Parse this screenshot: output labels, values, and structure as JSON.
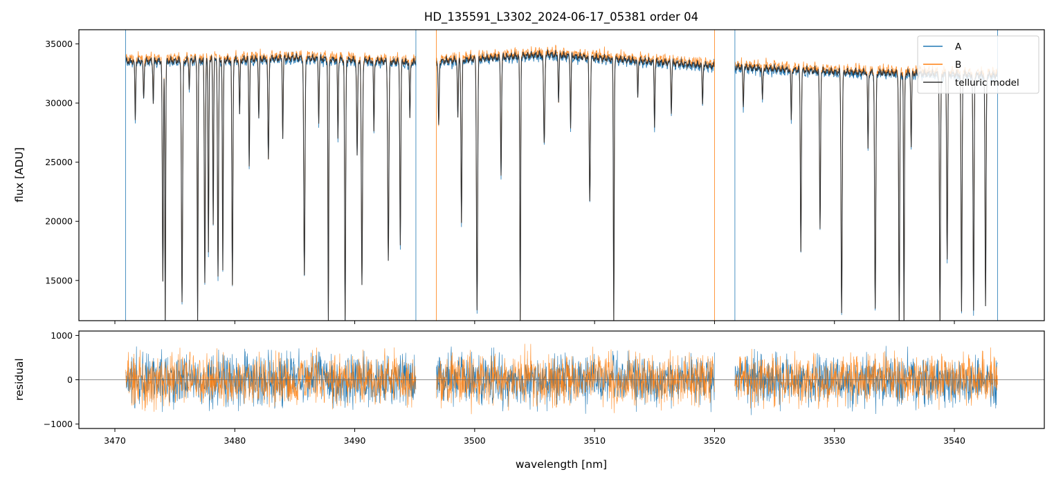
{
  "chart_data": {
    "type": "line",
    "title": "HD_135591_L3302_2024-06-17_05381  order 04",
    "xlabel": "wavelength [nm]",
    "xlim": [
      3467,
      3547.5
    ],
    "x_ticks": [
      3470,
      3480,
      3490,
      3500,
      3510,
      3520,
      3530,
      3540
    ],
    "x_tick_labels": [
      "3470",
      "3480",
      "3490",
      "3500",
      "3510",
      "3520",
      "3530",
      "3540"
    ],
    "colors": {
      "A": "#1f77b4",
      "B": "#ff7f0e",
      "model": "#333333",
      "zero_line": "#666666"
    },
    "legend": {
      "position": "top-right",
      "entries": [
        "A",
        "B",
        "telluric model"
      ]
    },
    "segments": [
      [
        3470.9,
        3495.1
      ],
      [
        3496.8,
        3520.0
      ],
      [
        3521.7,
        3543.6
      ]
    ],
    "panels": [
      {
        "name": "flux",
        "ylabel": "flux [ADU]",
        "ylim": [
          11600,
          36200
        ],
        "y_ticks": [
          15000,
          20000,
          25000,
          30000,
          35000
        ],
        "y_tick_labels": [
          "15000",
          "20000",
          "25000",
          "30000",
          "35000"
        ],
        "continuum_points": [
          [
            3471,
            34000
          ],
          [
            3480,
            34100
          ],
          [
            3485,
            34300
          ],
          [
            3495,
            33900
          ],
          [
            3497,
            34000
          ],
          [
            3506,
            34600
          ],
          [
            3510,
            34300
          ],
          [
            3520,
            33600
          ],
          [
            3522,
            33500
          ],
          [
            3530,
            33100
          ],
          [
            3543.6,
            32800
          ]
        ],
        "absorption_lines": [
          [
            3471.7,
            29000,
            0.05
          ],
          [
            3472.4,
            31000,
            0.06
          ],
          [
            3473.2,
            30500,
            0.05
          ],
          [
            3474.0,
            15000,
            0.06
          ],
          [
            3474.2,
            11600,
            0.05
          ],
          [
            3475.6,
            13300,
            0.07
          ],
          [
            3476.2,
            31800,
            0.05
          ],
          [
            3476.9,
            11600,
            0.05
          ],
          [
            3477.5,
            15000,
            0.06
          ],
          [
            3477.8,
            17600,
            0.05
          ],
          [
            3478.2,
            20000,
            0.05
          ],
          [
            3478.6,
            15500,
            0.06
          ],
          [
            3479.0,
            16000,
            0.05
          ],
          [
            3479.8,
            14800,
            0.06
          ],
          [
            3480.4,
            29300,
            0.05
          ],
          [
            3481.2,
            25000,
            0.05
          ],
          [
            3482.0,
            29000,
            0.05
          ],
          [
            3482.8,
            25400,
            0.06
          ],
          [
            3484.0,
            27500,
            0.05
          ],
          [
            3485.8,
            15500,
            0.07
          ],
          [
            3487.0,
            28800,
            0.05
          ],
          [
            3487.8,
            11600,
            0.05
          ],
          [
            3488.6,
            27500,
            0.05
          ],
          [
            3489.2,
            11600,
            0.06
          ],
          [
            3490.2,
            25800,
            0.06
          ],
          [
            3490.6,
            14800,
            0.07
          ],
          [
            3491.6,
            28000,
            0.05
          ],
          [
            3492.8,
            17000,
            0.07
          ],
          [
            3493.8,
            18300,
            0.06
          ],
          [
            3494.6,
            29000,
            0.05
          ],
          [
            3497.0,
            28500,
            0.06
          ],
          [
            3498.6,
            29000,
            0.05
          ],
          [
            3498.9,
            20200,
            0.06
          ],
          [
            3500.2,
            12700,
            0.07
          ],
          [
            3502.2,
            24400,
            0.06
          ],
          [
            3503.8,
            11600,
            0.05
          ],
          [
            3505.8,
            26800,
            0.07
          ],
          [
            3507.0,
            30500,
            0.05
          ],
          [
            3508.0,
            28300,
            0.05
          ],
          [
            3509.6,
            22000,
            0.07
          ],
          [
            3511.6,
            11600,
            0.05
          ],
          [
            3513.6,
            31000,
            0.05
          ],
          [
            3515.0,
            28500,
            0.05
          ],
          [
            3516.4,
            29500,
            0.05
          ],
          [
            3519.0,
            30200,
            0.05
          ],
          [
            3522.4,
            30000,
            0.05
          ],
          [
            3524.0,
            30500,
            0.05
          ],
          [
            3526.4,
            29000,
            0.05
          ],
          [
            3527.2,
            17800,
            0.06
          ],
          [
            3528.8,
            19600,
            0.06
          ],
          [
            3530.6,
            12500,
            0.07
          ],
          [
            3532.8,
            26500,
            0.05
          ],
          [
            3533.4,
            12700,
            0.07
          ],
          [
            3535.4,
            11600,
            0.06
          ],
          [
            3535.8,
            11600,
            0.05
          ],
          [
            3536.4,
            26500,
            0.05
          ],
          [
            3538.8,
            11600,
            0.06
          ],
          [
            3539.4,
            17000,
            0.06
          ],
          [
            3540.6,
            12500,
            0.06
          ],
          [
            3541.6,
            12600,
            0.06
          ],
          [
            3542.6,
            13000,
            0.06
          ]
        ]
      },
      {
        "name": "residual",
        "ylabel": "residual",
        "ylim": [
          -1100,
          1100
        ],
        "y_ticks": [
          -1000,
          0,
          1000
        ],
        "y_tick_labels": [
          "−1000",
          "0",
          "1000"
        ],
        "noise_amplitude": 400
      }
    ]
  }
}
